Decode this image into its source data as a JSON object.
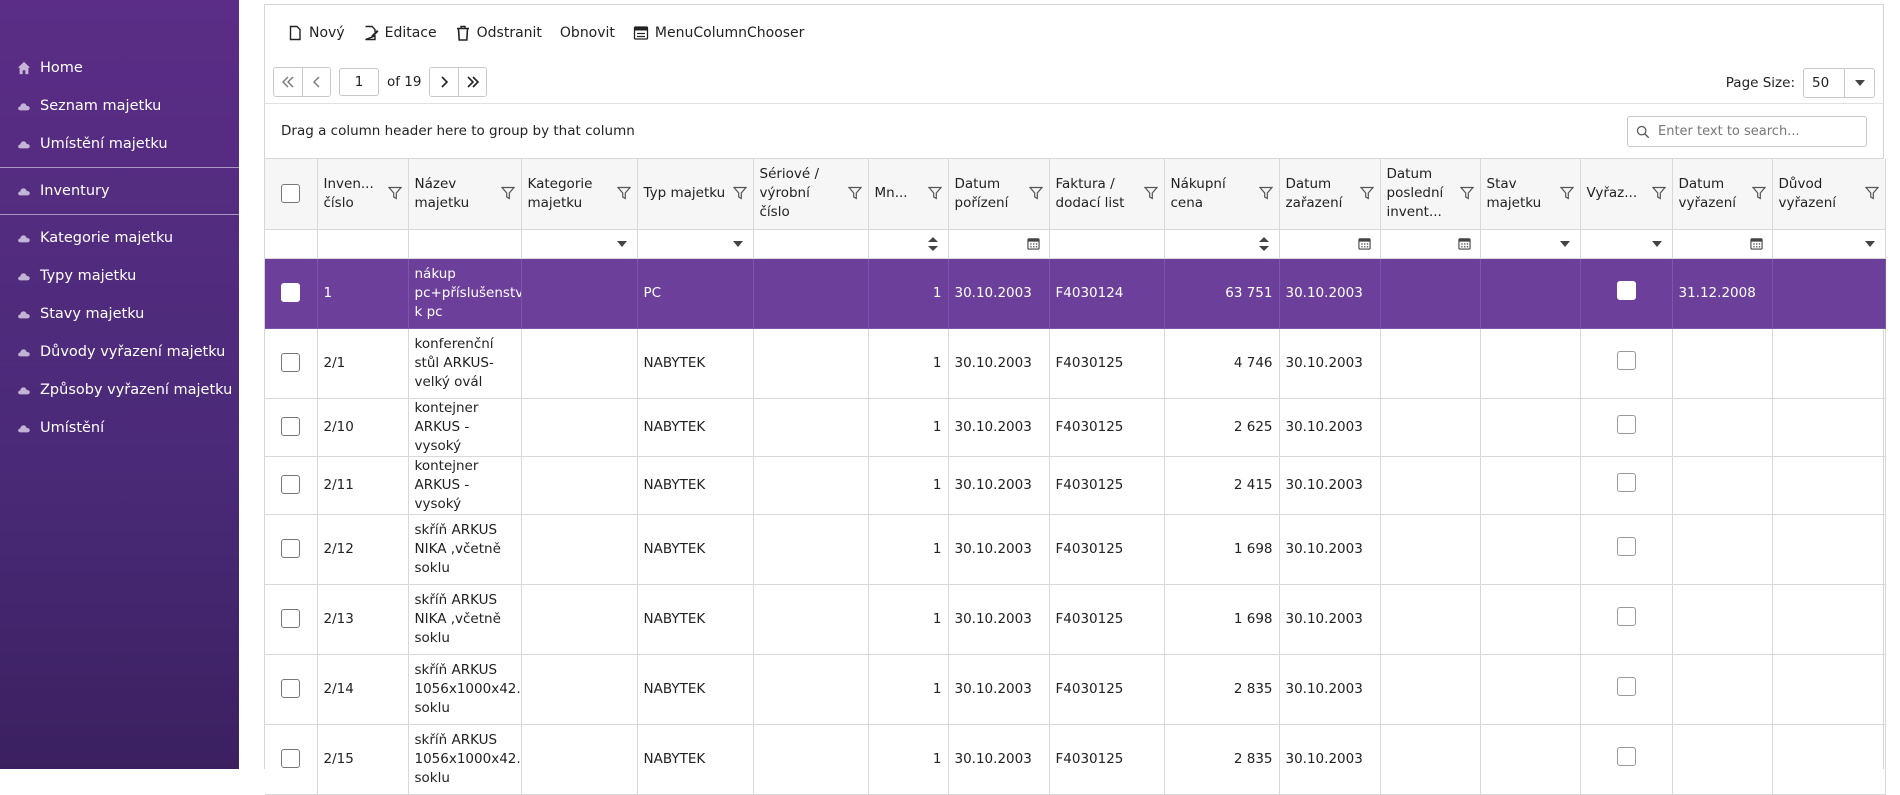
{
  "sidebar": {
    "items": [
      {
        "label": "Home",
        "icon": "home-icon"
      },
      {
        "label": "Seznam majetku",
        "icon": "cloud-icon"
      },
      {
        "label": "Umístění majetku",
        "icon": "cloud-icon"
      },
      {
        "label": "Inventury",
        "icon": "cloud-icon"
      },
      {
        "label": "Kategorie majetku",
        "icon": "cloud-icon"
      },
      {
        "label": "Typy majetku",
        "icon": "cloud-icon"
      },
      {
        "label": "Stavy majetku",
        "icon": "cloud-icon"
      },
      {
        "label": "Důvody vyřazení majetku",
        "icon": "cloud-icon"
      },
      {
        "label": "Způsoby vyřazení majetku",
        "icon": "cloud-icon"
      },
      {
        "label": "Umístění",
        "icon": "cloud-icon"
      }
    ]
  },
  "toolbar": {
    "new_label": "Nový",
    "edit_label": "Editace",
    "delete_label": "Odstranit",
    "refresh_label": "Obnovit",
    "chooser_label": "MenuColumnChooser"
  },
  "pager": {
    "current_page": "1",
    "of_label": "of 19",
    "page_size_label": "Page Size:",
    "page_size_value": "50"
  },
  "groupbar": {
    "hint": "Drag a column header here to group by that column",
    "search_placeholder": "Enter text to search..."
  },
  "columns": [
    "Inventární číslo",
    "Název majetku",
    "Kategorie majetku",
    "Typ majetku",
    "Sériové / výrobní číslo",
    "Množství",
    "Datum pořízení",
    "Faktura / dodací list",
    "Nákupní cena",
    "Datum zařazení",
    "Datum poslední inventury",
    "Stav majetku",
    "Vyřazeno",
    "Datum vyřazení",
    "Důvod vyřazení"
  ],
  "column_display": [
    "Inven... číslo",
    "Název majetku",
    "Kategorie majetku",
    "Typ majetku",
    "Sériové / výrobní číslo",
    "Mn...",
    "Datum pořízení",
    "Faktura / dodací list",
    "Nákupní cena",
    "Datum zařazení",
    "Datum poslední invent...",
    "Stav majetku",
    "Vyřaz...",
    "Datum vyřazení",
    "Důvod vyřazení"
  ],
  "rows": [
    {
      "inv": "1",
      "name": "nákup pc+příslušenství k pc",
      "cat": "",
      "type": "PC",
      "serial": "",
      "qty": "1",
      "date_acq": "30.10.2003",
      "invoice": "F4030124",
      "price": "63 751",
      "date_inc": "30.10.2003",
      "date_inv": "",
      "state": "",
      "date_disc": "31.12.2008",
      "reason": "",
      "selected": true
    },
    {
      "inv": "2/1",
      "name": "konferenční stůl ARKUS-velký ovál",
      "cat": "",
      "type": "NABYTEK",
      "serial": "",
      "qty": "1",
      "date_acq": "30.10.2003",
      "invoice": "F4030125",
      "price": "4 746",
      "date_inc": "30.10.2003",
      "date_inv": "",
      "state": "",
      "date_disc": "",
      "reason": ""
    },
    {
      "inv": "2/10",
      "name": "kontejner ARKUS - vysoký",
      "cat": "",
      "type": "NABYTEK",
      "serial": "",
      "qty": "1",
      "date_acq": "30.10.2003",
      "invoice": "F4030125",
      "price": "2 625",
      "date_inc": "30.10.2003",
      "date_inv": "",
      "state": "",
      "date_disc": "",
      "reason": ""
    },
    {
      "inv": "2/11",
      "name": "kontejner ARKUS - vysoký",
      "cat": "",
      "type": "NABYTEK",
      "serial": "",
      "qty": "1",
      "date_acq": "30.10.2003",
      "invoice": "F4030125",
      "price": "2 415",
      "date_inc": "30.10.2003",
      "date_inv": "",
      "state": "",
      "date_disc": "",
      "reason": ""
    },
    {
      "inv": "2/12",
      "name": "skříň ARKUS NIKA ,včetně soklu",
      "cat": "",
      "type": "NABYTEK",
      "serial": "",
      "qty": "1",
      "date_acq": "30.10.2003",
      "invoice": "F4030125",
      "price": "1 698",
      "date_inc": "30.10.2003",
      "date_inv": "",
      "state": "",
      "date_disc": "",
      "reason": ""
    },
    {
      "inv": "2/13",
      "name": "skříň ARKUS NIKA ,včetně soklu",
      "cat": "",
      "type": "NABYTEK",
      "serial": "",
      "qty": "1",
      "date_acq": "30.10.2003",
      "invoice": "F4030125",
      "price": "1 698",
      "date_inc": "30.10.2003",
      "date_inv": "",
      "state": "",
      "date_disc": "",
      "reason": ""
    },
    {
      "inv": "2/14",
      "name": "skříň ARKUS 1056x1000x42... soklu",
      "cat": "",
      "type": "NABYTEK",
      "serial": "",
      "qty": "1",
      "date_acq": "30.10.2003",
      "invoice": "F4030125",
      "price": "2 835",
      "date_inc": "30.10.2003",
      "date_inv": "",
      "state": "",
      "date_disc": "",
      "reason": ""
    },
    {
      "inv": "2/15",
      "name": "skříň ARKUS 1056x1000x42... soklu",
      "cat": "",
      "type": "NABYTEK",
      "serial": "",
      "qty": "1",
      "date_acq": "30.10.2003",
      "invoice": "F4030125",
      "price": "2 835",
      "date_inc": "30.10.2003",
      "date_inv": "",
      "state": "",
      "date_disc": "",
      "reason": ""
    }
  ],
  "colors": {
    "sidebar_top": "#5b2d86",
    "selected_row": "#6b3f9a",
    "header_bg": "#f6f6f6"
  }
}
